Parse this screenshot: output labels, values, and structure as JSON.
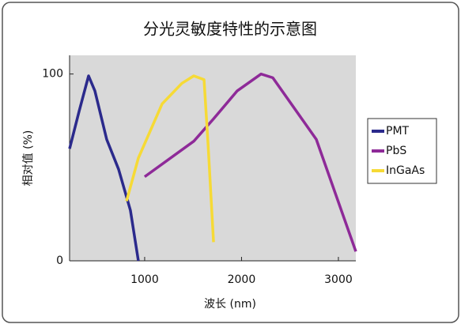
{
  "chart_data": {
    "type": "line",
    "title": "分光灵敏度特性的示意图",
    "xlabel": "波长 (nm)",
    "ylabel": "相对值 (%)",
    "xlim": [
      225,
      3180
    ],
    "xticks": [
      1000,
      2000,
      3000
    ],
    "ylim": [
      0,
      110
    ],
    "yticks": [
      0,
      100
    ],
    "legend": "right",
    "series": [
      {
        "name": "PMT",
        "color": "#2b2a8c",
        "x": [
          225,
          323,
          421,
          486,
          608,
          731,
          853,
          935
        ],
        "values": [
          60,
          80,
          99,
          91,
          65,
          49,
          27,
          0
        ]
      },
      {
        "name": "PbS",
        "color": "#8e2a98",
        "x": [
          1000,
          1507,
          1711,
          1956,
          2201,
          2323,
          2772,
          3180
        ],
        "values": [
          45,
          64,
          76,
          91,
          100,
          98,
          65,
          5
        ]
      },
      {
        "name": "InGaAs",
        "color": "#f6da36",
        "x": [
          813,
          935,
          1180,
          1384,
          1507,
          1613,
          1654,
          1711
        ],
        "values": [
          32,
          55,
          84,
          95,
          99,
          97,
          63,
          10
        ]
      }
    ]
  }
}
